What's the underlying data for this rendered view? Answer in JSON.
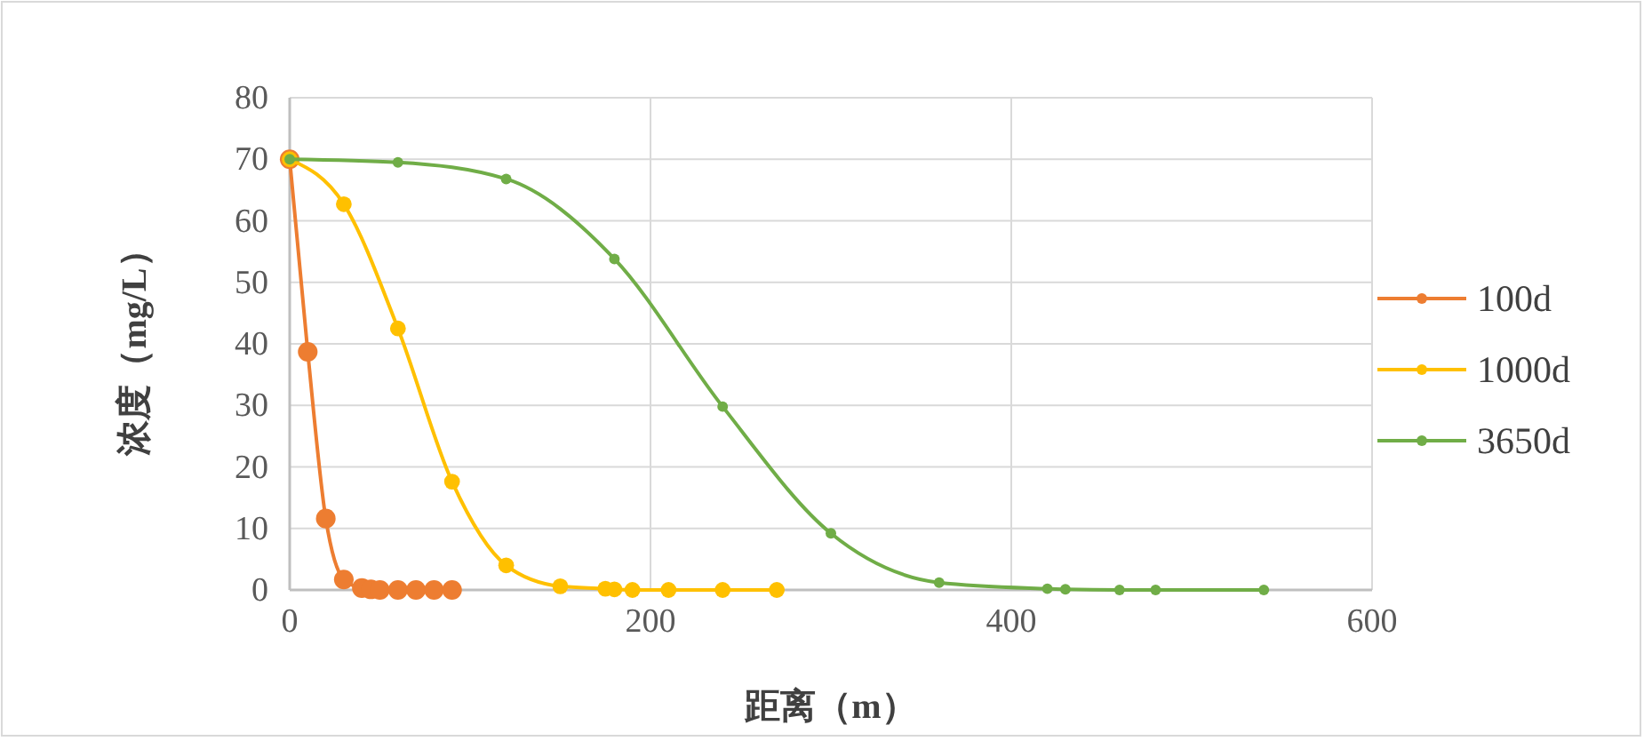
{
  "chart_data": {
    "type": "line",
    "xlabel": "距离（m）",
    "ylabel": "浓度（mg/L）",
    "xlim": [
      0,
      600
    ],
    "xticks": [
      0,
      200,
      400,
      600
    ],
    "ylim": [
      0,
      80
    ],
    "yticks": [
      0,
      10,
      20,
      30,
      40,
      50,
      60,
      70,
      80
    ],
    "grid": true,
    "legend": "right",
    "marker": "circle",
    "line_style": "solid",
    "series": [
      {
        "name": "100d",
        "color": "#ed7d31",
        "x": [
          0,
          10,
          20,
          30,
          40,
          45,
          50,
          60,
          70,
          80,
          90
        ],
        "values": [
          70,
          38.7,
          11.6,
          1.7,
          0.3,
          0.1,
          0,
          0,
          0,
          0,
          0
        ]
      },
      {
        "name": "1000d",
        "color": "#ffc000",
        "x": [
          0,
          30,
          60,
          90,
          120,
          150,
          175,
          180,
          190,
          210,
          240,
          270
        ],
        "values": [
          70,
          62.7,
          42.5,
          17.6,
          4,
          0.6,
          0.2,
          0.1,
          0,
          0,
          0,
          0
        ]
      },
      {
        "name": "3650d",
        "color": "#70ad47",
        "x": [
          0,
          60,
          120,
          180,
          240,
          300,
          360,
          420,
          430,
          460,
          480,
          540
        ],
        "values": [
          70,
          69.5,
          66.8,
          53.8,
          29.8,
          9.2,
          1.2,
          0.2,
          0.1,
          0,
          0,
          0
        ]
      }
    ]
  }
}
